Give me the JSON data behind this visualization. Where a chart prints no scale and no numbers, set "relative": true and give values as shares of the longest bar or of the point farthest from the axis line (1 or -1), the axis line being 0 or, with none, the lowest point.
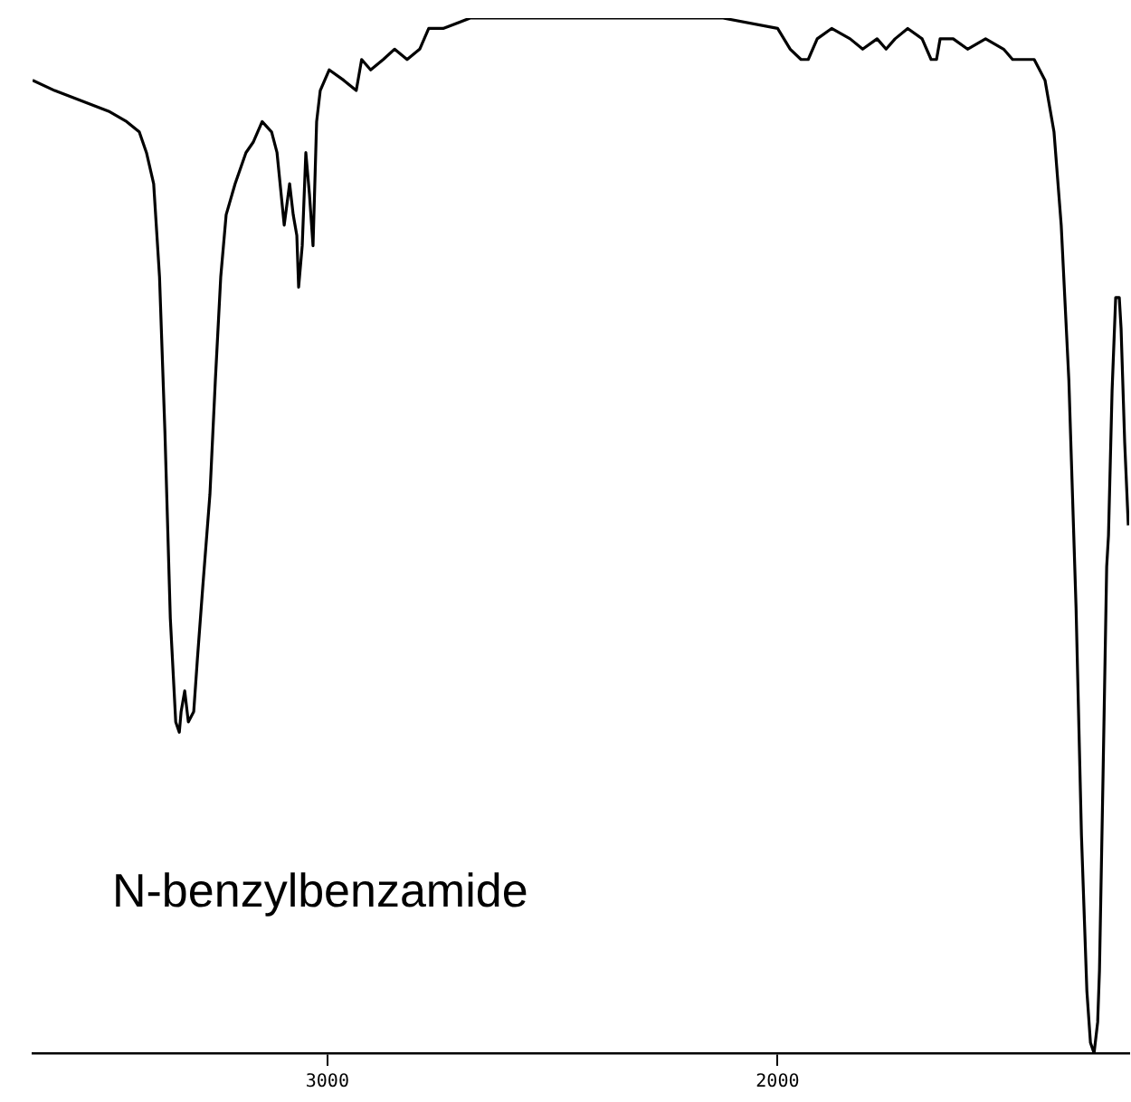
{
  "chart_data": {
    "type": "line",
    "relative": true,
    "annotations": [
      "N-benzylbenzamide"
    ],
    "xlim": [
      3655,
      1219
    ],
    "xticks": [
      3000,
      2000
    ],
    "grid": false,
    "legend": false,
    "marker": "none",
    "line_style": "solid",
    "tick_labels": "x",
    "x": [
      3655,
      3606,
      3546,
      3486,
      3446,
      3418,
      3402,
      3386,
      3373,
      3361,
      3349,
      3337,
      3329,
      3325,
      3317,
      3309,
      3297,
      3289,
      3277,
      3261,
      3249,
      3237,
      3225,
      3205,
      3181,
      3165,
      3145,
      3124,
      3112,
      3096,
      3084,
      3076,
      3068,
      3064,
      3056,
      3048,
      3040,
      3032,
      3024,
      3016,
      2996,
      2964,
      2936,
      2924,
      2904,
      2876,
      2851,
      2823,
      2795,
      2775,
      2743,
      2683,
      2574,
      2402,
      2281,
      2121,
      2000,
      1972,
      1948,
      1932,
      1912,
      1880,
      1839,
      1811,
      1779,
      1759,
      1739,
      1711,
      1679,
      1659,
      1647,
      1639,
      1610,
      1578,
      1538,
      1498,
      1478,
      1430,
      1406,
      1386,
      1370,
      1353,
      1337,
      1325,
      1313,
      1305,
      1297,
      1289,
      1285,
      1277,
      1269,
      1265,
      1257,
      1249,
      1241,
      1237,
      1229,
      1221
    ],
    "series": [
      {
        "color": "#000000",
        "values": [
          0.94,
          0.93,
          0.92,
          0.91,
          0.9,
          0.89,
          0.87,
          0.84,
          0.75,
          0.6,
          0.42,
          0.32,
          0.31,
          0.33,
          0.35,
          0.32,
          0.33,
          0.38,
          0.45,
          0.54,
          0.65,
          0.75,
          0.81,
          0.84,
          0.87,
          0.88,
          0.9,
          0.89,
          0.87,
          0.8,
          0.84,
          0.81,
          0.79,
          0.74,
          0.78,
          0.87,
          0.83,
          0.78,
          0.9,
          0.93,
          0.95,
          0.94,
          0.93,
          0.96,
          0.95,
          0.96,
          0.97,
          0.96,
          0.97,
          0.99,
          0.99,
          1.0,
          1.0,
          1.0,
          1.0,
          1.0,
          0.99,
          0.97,
          0.96,
          0.96,
          0.98,
          0.99,
          0.98,
          0.97,
          0.98,
          0.97,
          0.98,
          0.99,
          0.98,
          0.96,
          0.96,
          0.98,
          0.98,
          0.97,
          0.98,
          0.97,
          0.96,
          0.96,
          0.94,
          0.89,
          0.8,
          0.65,
          0.43,
          0.21,
          0.06,
          0.01,
          0,
          0.03,
          0.08,
          0.27,
          0.47,
          0.5,
          0.64,
          0.73,
          0.73,
          0.7,
          0.59,
          0.51
        ]
      }
    ]
  }
}
